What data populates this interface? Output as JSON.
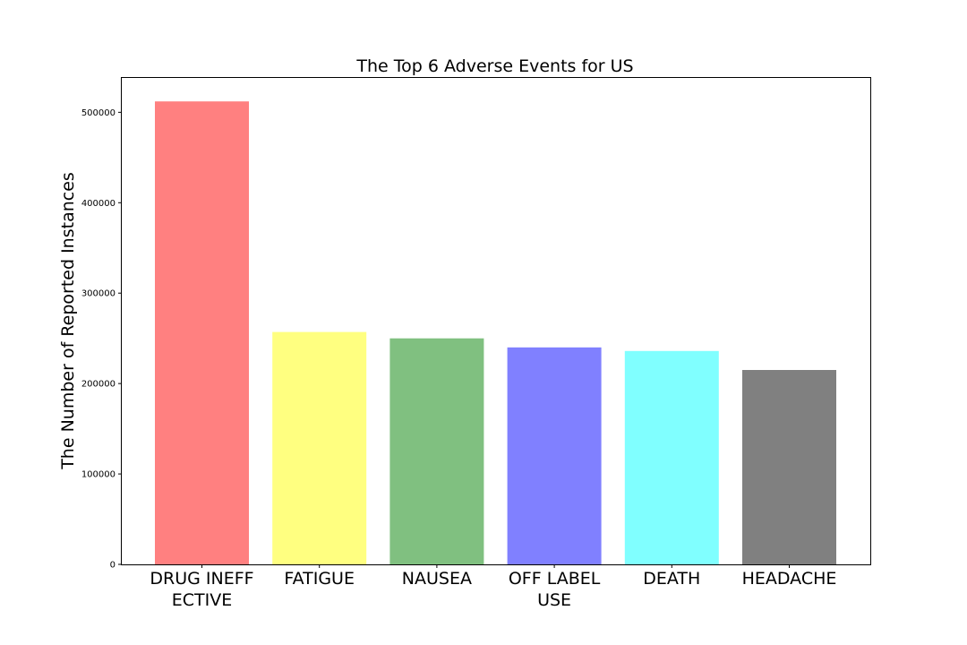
{
  "chart_data": {
    "type": "bar",
    "title": "The Top 6 Adverse Events for US",
    "xlabel": "",
    "ylabel": "The Number of Reported Instances",
    "categories": [
      "DRUG INEFFECTIVE",
      "FATIGUE",
      "NAUSEA",
      "OFF LABEL USE",
      "DEATH",
      "HEADACHE"
    ],
    "category_label_lines": [
      [
        "DRUG INEFF",
        "ECTIVE"
      ],
      [
        "FATIGUE"
      ],
      [
        "NAUSEA"
      ],
      [
        "OFF LABEL",
        "USE"
      ],
      [
        "DEATH"
      ],
      [
        "HEADACHE"
      ]
    ],
    "values": [
      512000,
      257000,
      250000,
      240000,
      236000,
      215000
    ],
    "colors": [
      "#ff8080",
      "#ffff80",
      "#80c080",
      "#8080ff",
      "#80ffff",
      "#808080"
    ],
    "ylim": [
      0,
      538000
    ],
    "yticks": [
      0,
      100000,
      200000,
      300000,
      400000,
      500000
    ],
    "ytick_labels": [
      "0",
      "100000",
      "200000",
      "300000",
      "400000",
      "500000"
    ],
    "grid": false,
    "legend": "none"
  }
}
